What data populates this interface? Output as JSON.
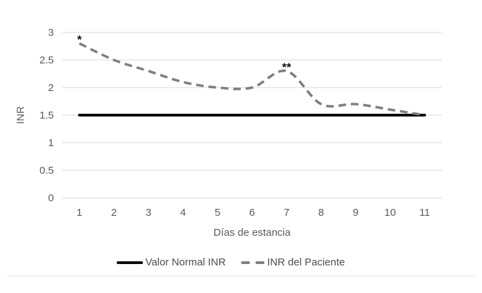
{
  "chart_data": {
    "type": "line",
    "title": "",
    "x": [
      1,
      2,
      3,
      4,
      5,
      6,
      7,
      8,
      9,
      10,
      11
    ],
    "x_tick_labels": [
      "1",
      "2",
      "3",
      "4",
      "5",
      "6",
      "7",
      "8",
      "9",
      "10",
      "11"
    ],
    "y_tick_labels": [
      "0",
      "0.5",
      "1",
      "1.5",
      "2",
      "2.5",
      "3"
    ],
    "ylim": [
      0,
      3
    ],
    "ytick_step": 0.5,
    "xlabel": "Días de estancia",
    "ylabel": "INR",
    "grid": "horizontal",
    "legend_position": "bottom",
    "series": [
      {
        "name": "Valor Normal INR",
        "values": [
          1.5,
          1.5,
          1.5,
          1.5,
          1.5,
          1.5,
          1.5,
          1.5,
          1.5,
          1.5,
          1.5
        ],
        "color": "#0a0a0a",
        "line_style": "solid",
        "smooth": false
      },
      {
        "name": "INR del Paciente",
        "values": [
          2.8,
          2.5,
          2.3,
          2.1,
          2.0,
          2.0,
          2.3,
          1.7,
          1.7,
          1.6,
          1.5
        ],
        "color": "#7f7f7f",
        "line_style": "dashed",
        "smooth": true
      }
    ],
    "annotations": [
      {
        "text": "*",
        "x": 1,
        "y": 2.8
      },
      {
        "text": "**",
        "x": 7,
        "y": 2.3
      }
    ]
  },
  "colors": {
    "gridline": "#d9d9d9",
    "axis_text": "#595959",
    "annotation": "#111111",
    "divider": "#e7e7e7",
    "background": "#ffffff"
  }
}
